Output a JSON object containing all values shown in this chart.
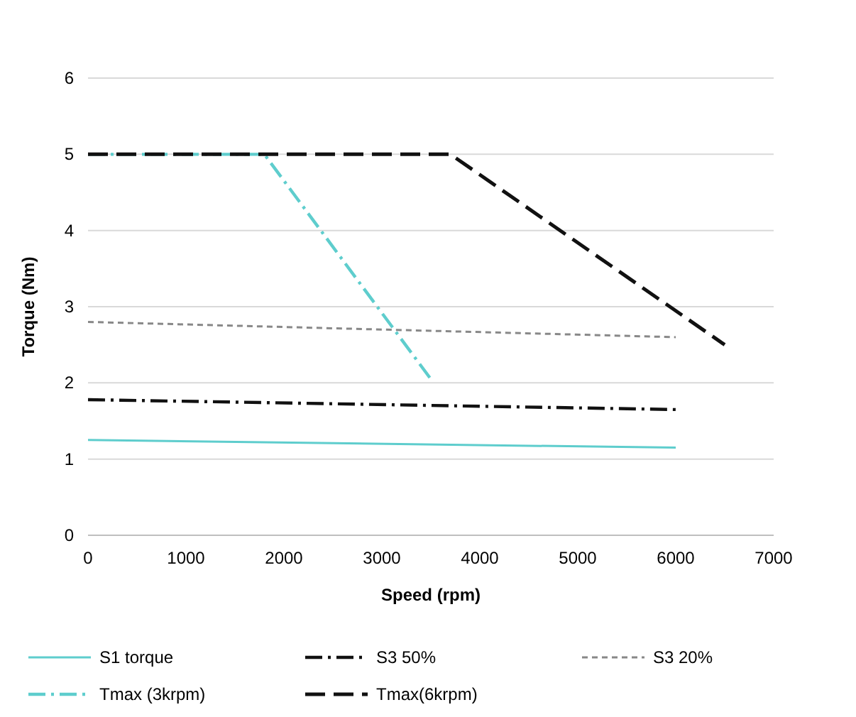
{
  "chart_data": {
    "type": "line",
    "xlabel": "Speed (rpm)",
    "ylabel": "Torque (Nm)",
    "xlim": [
      0,
      7000
    ],
    "xticks": [
      0,
      1000,
      2000,
      3000,
      4000,
      5000,
      6000,
      7000
    ],
    "ylim": [
      0,
      6
    ],
    "yticks": [
      0,
      1,
      2,
      3,
      4,
      5,
      6
    ],
    "grid": "y",
    "legend": "bottom",
    "series": [
      {
        "name": "S1 torque",
        "color": "#5ecdcd",
        "line_style": "solid",
        "x": [
          0,
          6000
        ],
        "values": [
          1.25,
          1.15
        ]
      },
      {
        "name": "S3 50%",
        "color": "#111111",
        "line_style": "dashdot",
        "x": [
          0,
          6000
        ],
        "values": [
          1.78,
          1.65
        ]
      },
      {
        "name": "S3 20%",
        "color": "#888888",
        "line_style": "dotted",
        "x": [
          0,
          6000
        ],
        "values": [
          2.8,
          2.6
        ]
      },
      {
        "name": "Tmax (3krpm)",
        "color": "#5ecdcd",
        "line_style": "dashdot",
        "x": [
          0,
          1800,
          3500
        ],
        "values": [
          5,
          5,
          2.05
        ]
      },
      {
        "name": "Tmax(6krpm)",
        "color": "#111111",
        "line_style": "dashed",
        "x": [
          0,
          3700,
          6500
        ],
        "values": [
          5,
          5,
          2.5
        ]
      }
    ]
  }
}
